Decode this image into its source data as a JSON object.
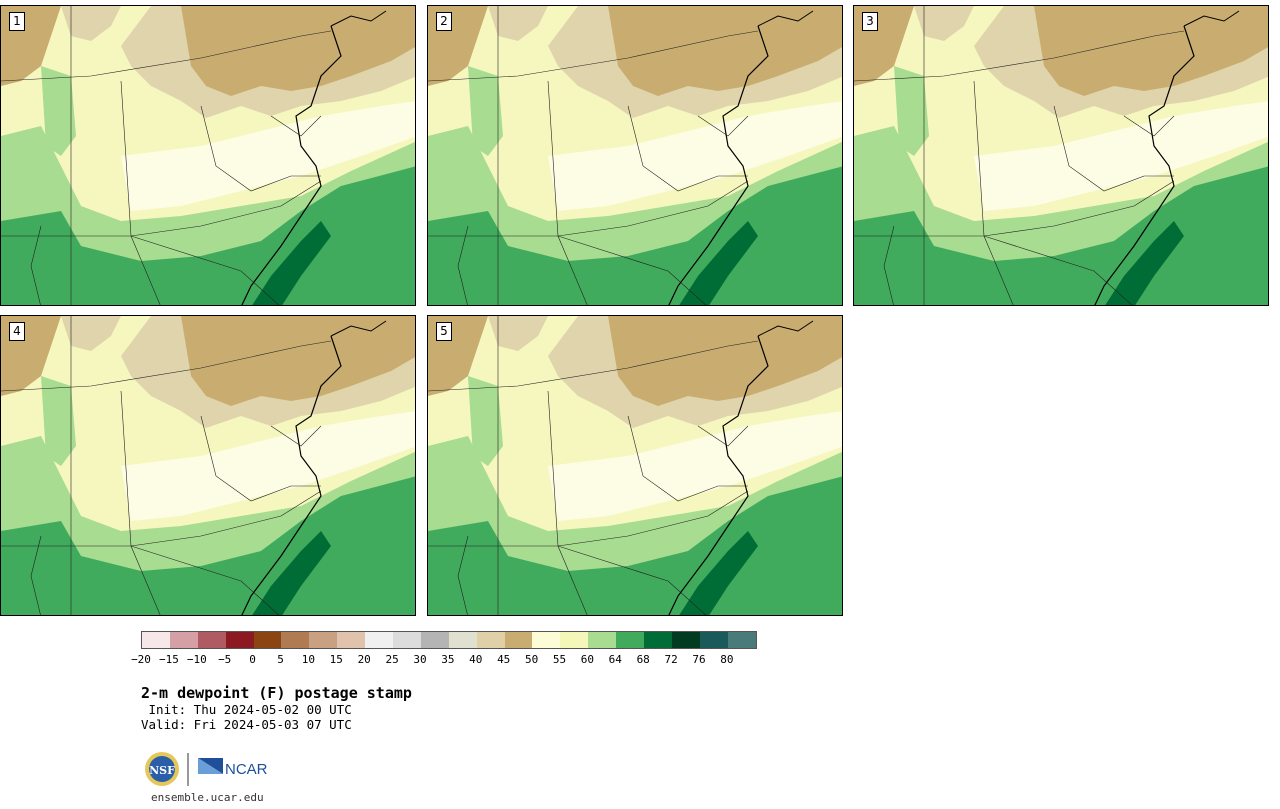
{
  "panels": [
    {
      "label": "1"
    },
    {
      "label": "2"
    },
    {
      "label": "3"
    },
    {
      "label": "4"
    },
    {
      "label": "5"
    }
  ],
  "colorbar": {
    "colors": [
      "#f6e8e8",
      "#d4a0a6",
      "#b05a63",
      "#8b1a22",
      "#8b4513",
      "#b07a52",
      "#c9a081",
      "#e0c2ad",
      "#f0f0f0",
      "#dcdcdc",
      "#b4b4b4",
      "#dfe0d0",
      "#e0d0a8",
      "#c9ad70",
      "#fcfcd6",
      "#f4f7b8",
      "#a8dc90",
      "#41ab5d",
      "#006d36",
      "#013b22",
      "#1a5a5a",
      "#4a7a7a"
    ],
    "ticks": [
      "−20",
      "−15",
      "−10",
      "−5",
      "0",
      "5",
      "10",
      "15",
      "20",
      "25",
      "30",
      "35",
      "40",
      "45",
      "50",
      "55",
      "60",
      "64",
      "68",
      "72",
      "76",
      "80"
    ]
  },
  "legend": {
    "title": "2-m dewpoint (F) postage stamp",
    "init": " Init: Thu 2024-05-02 00 UTC",
    "valid": "Valid: Fri 2024-05-03 07 UTC"
  },
  "footer": {
    "nsf_logo_text": "NSF",
    "ncar_logo_text": "NCAR",
    "site": "ensemble.ucar.edu"
  }
}
